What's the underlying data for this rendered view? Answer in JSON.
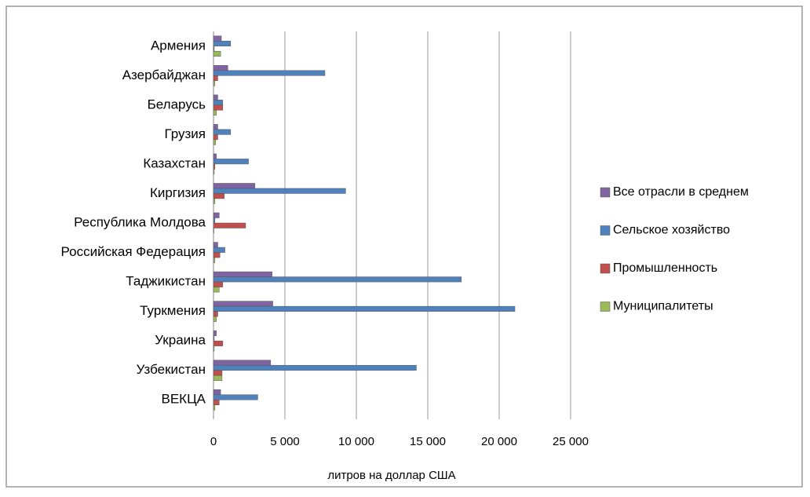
{
  "chart_data": {
    "type": "bar",
    "orientation": "horizontal",
    "x_label": "литров на доллар США",
    "categories": [
      "Армения",
      "Азербайджан",
      "Беларусь",
      "Грузия",
      "Казахстан",
      "Киргизия",
      "Республика Молдова",
      "Российская Федерация",
      "Таджикистан",
      "Туркмения",
      "Украина",
      "Узбекистан",
      "ВЕКЦА"
    ],
    "series": [
      {
        "name": "Все отрасли в среднем",
        "color": "#8064a2",
        "values": [
          550,
          1000,
          300,
          300,
          200,
          2900,
          400,
          300,
          4100,
          4150,
          200,
          4000,
          500
        ]
      },
      {
        "name": "Сельское хозяйство",
        "color": "#4f81bd",
        "values": [
          1200,
          7800,
          650,
          1200,
          2450,
          9250,
          100,
          800,
          17350,
          21100,
          50,
          14200,
          3100
        ]
      },
      {
        "name": "Промышленность",
        "color": "#c0504d",
        "values": [
          50,
          300,
          650,
          300,
          100,
          750,
          2250,
          450,
          650,
          300,
          650,
          600,
          400
        ]
      },
      {
        "name": "Муниципалитеты",
        "color": "#9bbb59",
        "values": [
          500,
          100,
          200,
          150,
          50,
          100,
          30,
          100,
          400,
          200,
          50,
          600,
          100
        ]
      }
    ],
    "xlim": [
      0,
      25000
    ],
    "xticks": [
      0,
      {
        "value": 5000,
        "label": "5 000"
      },
      {
        "value": 10000,
        "label": "10 000"
      },
      {
        "value": 15000,
        "label": "15 000"
      },
      {
        "value": 20000,
        "label": "20 000"
      },
      {
        "value": 25000,
        "label": "25 000"
      }
    ],
    "grid": true,
    "legend": "right"
  }
}
